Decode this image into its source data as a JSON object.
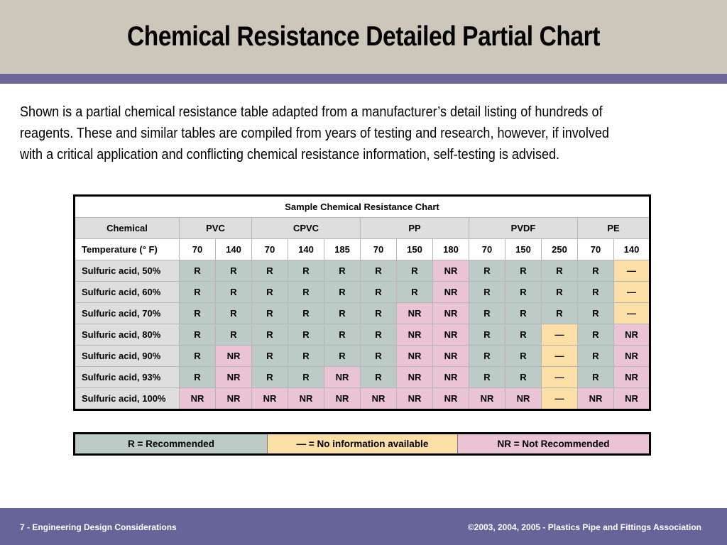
{
  "slide": {
    "title": "Chemical Resistance Detailed Partial Chart",
    "intro_lines": [
      "Shown is a partial chemical resistance table adapted from a manufacturer’s detail listing of hundreds of",
      "reagents. These and similar tables are compiled from years of testing and research, however, if involved",
      "with a critical application and conflicting chemical resistance information, self-testing is advised."
    ]
  },
  "table": {
    "caption": "Sample Chemical Resistance Chart",
    "chemical_header": "Chemical",
    "materials": [
      {
        "name": "PVC",
        "temps": [
          "70",
          "140"
        ]
      },
      {
        "name": "CPVC",
        "temps": [
          "70",
          "140",
          "185"
        ]
      },
      {
        "name": "PP",
        "temps": [
          "70",
          "150",
          "180"
        ]
      },
      {
        "name": "PVDF",
        "temps": [
          "70",
          "150",
          "250"
        ]
      },
      {
        "name": "PE",
        "temps": [
          "70",
          "140"
        ]
      }
    ],
    "temperature_label": "Temperature (° F)",
    "rows": [
      {
        "chemical": "Sulfuric acid, 50%",
        "values": [
          "R",
          "R",
          "R",
          "R",
          "R",
          "R",
          "R",
          "NR",
          "R",
          "R",
          "R",
          "R",
          "—"
        ]
      },
      {
        "chemical": "Sulfuric acid, 60%",
        "values": [
          "R",
          "R",
          "R",
          "R",
          "R",
          "R",
          "R",
          "NR",
          "R",
          "R",
          "R",
          "R",
          "—"
        ]
      },
      {
        "chemical": "Sulfuric acid, 70%",
        "values": [
          "R",
          "R",
          "R",
          "R",
          "R",
          "R",
          "NR",
          "NR",
          "R",
          "R",
          "R",
          "R",
          "—"
        ]
      },
      {
        "chemical": "Sulfuric acid, 80%",
        "values": [
          "R",
          "R",
          "R",
          "R",
          "R",
          "R",
          "NR",
          "NR",
          "R",
          "R",
          "—",
          "R",
          "NR"
        ]
      },
      {
        "chemical": "Sulfuric acid, 90%",
        "values": [
          "R",
          "NR",
          "R",
          "R",
          "R",
          "R",
          "NR",
          "NR",
          "R",
          "R",
          "—",
          "R",
          "NR"
        ]
      },
      {
        "chemical": "Sulfuric acid, 93%",
        "values": [
          "R",
          "NR",
          "R",
          "R",
          "NR",
          "R",
          "NR",
          "NR",
          "R",
          "R",
          "—",
          "R",
          "NR"
        ]
      },
      {
        "chemical": "Sulfuric acid, 100%",
        "values": [
          "NR",
          "NR",
          "NR",
          "NR",
          "NR",
          "NR",
          "NR",
          "NR",
          "NR",
          "NR",
          "—",
          "NR",
          "NR"
        ]
      }
    ]
  },
  "legend": {
    "recommended": "R = Recommended",
    "no_info": "—  = No information available",
    "not_recommended": "NR = Not Recommended"
  },
  "footer": {
    "left": "7 - Engineering Design Considerations",
    "right": "©2003, 2004, 2005 - Plastics Pipe and Fittings Association"
  },
  "colors": {
    "header_band": "#cdc6ba",
    "accent_stripe": "#6b6898",
    "recommended": "#bccbc5",
    "not_recommended": "#eac3d4",
    "no_info": "#fbdfa7",
    "footer": "#67649a"
  }
}
